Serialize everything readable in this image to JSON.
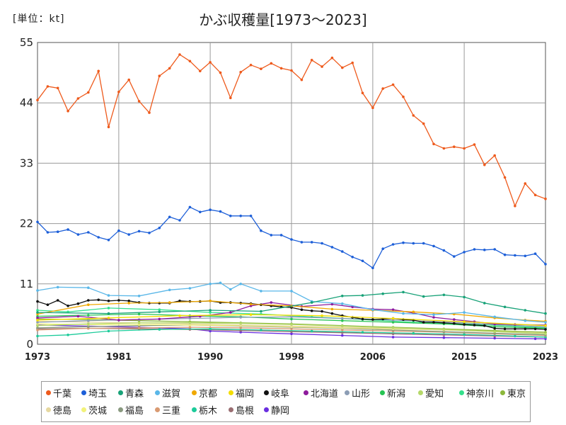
{
  "chart_data": {
    "type": "line",
    "title": "かぶ収穫量[1973〜2023]",
    "unit_label": "[単位：kt]",
    "x_ticks": [
      1973,
      1981,
      1990,
      1998,
      2006,
      2015,
      2023
    ],
    "y_ticks": [
      0,
      11,
      22,
      33,
      44,
      55
    ],
    "xlim": [
      1973,
      2023
    ],
    "ylim": [
      0,
      55
    ],
    "grid": true,
    "legend_position": "bottom",
    "series": [
      {
        "name": "千葉",
        "color": "#ee5a1c",
        "x": [
          1973,
          1974,
          1975,
          1976,
          1977,
          1978,
          1979,
          1980,
          1981,
          1982,
          1983,
          1984,
          1985,
          1986,
          1987,
          1988,
          1989,
          1990,
          1991,
          1992,
          1993,
          1994,
          1995,
          1996,
          1997,
          1998,
          1999,
          2000,
          2001,
          2002,
          2003,
          2004,
          2005,
          2006,
          2007,
          2008,
          2009,
          2010,
          2011,
          2012,
          2013,
          2014,
          2015,
          2016,
          2017,
          2018,
          2019,
          2020,
          2021,
          2022,
          2023
        ],
        "y": [
          44.5,
          47.0,
          46.7,
          42.5,
          44.8,
          45.9,
          49.8,
          39.6,
          46.0,
          48.2,
          44.3,
          42.2,
          48.9,
          50.3,
          52.8,
          51.6,
          49.8,
          51.4,
          49.5,
          44.9,
          49.6,
          50.9,
          50.2,
          51.2,
          50.3,
          49.9,
          48.2,
          51.8,
          50.6,
          52.2,
          50.4,
          51.3,
          45.8,
          43.1,
          46.6,
          47.3,
          45.1,
          41.7,
          40.2,
          36.5,
          35.7,
          36.0,
          35.7,
          36.4,
          32.7,
          34.4,
          30.4,
          25.2,
          29.3,
          27.2,
          26.5
        ]
      },
      {
        "name": "埼玉",
        "color": "#1d5fd8",
        "x": [
          1973,
          1974,
          1975,
          1976,
          1977,
          1978,
          1979,
          1980,
          1981,
          1982,
          1983,
          1984,
          1985,
          1986,
          1987,
          1988,
          1989,
          1990,
          1991,
          1992,
          1993,
          1994,
          1995,
          1996,
          1997,
          1998,
          1999,
          2000,
          2001,
          2002,
          2003,
          2004,
          2005,
          2006,
          2007,
          2008,
          2009,
          2010,
          2011,
          2012,
          2013,
          2014,
          2015,
          2016,
          2017,
          2018,
          2019,
          2020,
          2021,
          2022,
          2023
        ],
        "y": [
          22.3,
          20.4,
          20.5,
          20.9,
          20.0,
          20.4,
          19.5,
          19.0,
          20.7,
          20.0,
          20.6,
          20.3,
          21.2,
          23.2,
          22.6,
          25.0,
          24.1,
          24.5,
          24.2,
          23.4,
          23.4,
          23.4,
          20.7,
          19.9,
          19.9,
          19.1,
          18.6,
          18.6,
          18.4,
          17.7,
          16.9,
          15.9,
          15.2,
          13.9,
          17.4,
          18.2,
          18.5,
          18.4,
          18.4,
          17.9,
          17.1,
          16.0,
          16.8,
          17.3,
          17.2,
          17.3,
          16.3,
          16.2,
          16.1,
          16.5,
          14.6
        ]
      },
      {
        "name": "青森",
        "color": "#18a278",
        "x": [
          1973,
          1980,
          1985,
          1990,
          1995,
          2000,
          2003,
          2005,
          2007,
          2009,
          2011,
          2013,
          2015,
          2017,
          2019,
          2021,
          2023
        ],
        "y": [
          5.8,
          5.6,
          5.9,
          6.2,
          6.0,
          7.6,
          8.8,
          8.9,
          9.2,
          9.5,
          8.7,
          9.0,
          8.6,
          7.5,
          6.8,
          6.2,
          5.6
        ]
      },
      {
        "name": "滋賀",
        "color": "#5ab7e8",
        "x": [
          1973,
          1975,
          1978,
          1980,
          1983,
          1986,
          1988,
          1990,
          1991,
          1992,
          1993,
          1995,
          1998,
          2000,
          2003,
          2006,
          2009,
          2012,
          2015,
          2018,
          2021,
          2023
        ],
        "y": [
          9.8,
          10.4,
          10.3,
          8.9,
          8.8,
          9.9,
          10.2,
          11.0,
          11.2,
          10.0,
          11.0,
          9.7,
          9.7,
          7.8,
          7.4,
          6.3,
          5.6,
          5.4,
          5.8,
          5.0,
          4.3,
          4.0
        ]
      },
      {
        "name": "京都",
        "color": "#f0a800",
        "x": [
          1973,
          1978,
          1982,
          1986,
          1990,
          1994,
          1998,
          2002,
          2006,
          2010,
          2014,
          2018,
          2021,
          2023
        ],
        "y": [
          5.5,
          7.2,
          7.5,
          7.6,
          7.9,
          7.3,
          7.0,
          6.4,
          6.2,
          5.9,
          5.5,
          4.8,
          4.4,
          4.2
        ]
      },
      {
        "name": "福岡",
        "color": "#f3dd00",
        "x": [
          1973,
          1980,
          1987,
          1994,
          2001,
          2008,
          2015,
          2023
        ],
        "y": [
          4.4,
          4.8,
          5.2,
          5.4,
          5.2,
          4.7,
          4.1,
          3.4
        ]
      },
      {
        "name": "岐阜",
        "color": "#111111",
        "x": [
          1973,
          1974,
          1975,
          1976,
          1977,
          1978,
          1979,
          1980,
          1981,
          1982,
          1983,
          1984,
          1985,
          1986,
          1987,
          1988,
          1989,
          1990,
          1991,
          1992,
          1993,
          1994,
          1995,
          1996,
          1997,
          1998,
          1999,
          2000,
          2001,
          2002,
          2003,
          2004,
          2005,
          2006,
          2007,
          2008,
          2009,
          2010,
          2011,
          2012,
          2013,
          2014,
          2015,
          2016,
          2017,
          2018,
          2019,
          2020,
          2021,
          2022,
          2023
        ],
        "y": [
          7.8,
          7.2,
          8.0,
          7.0,
          7.4,
          8.0,
          8.1,
          7.9,
          8.0,
          7.9,
          7.6,
          7.5,
          7.5,
          7.5,
          7.9,
          7.8,
          7.8,
          7.9,
          7.6,
          7.6,
          7.5,
          7.4,
          7.2,
          7.0,
          6.8,
          6.7,
          6.3,
          6.1,
          6.0,
          5.6,
          5.2,
          4.9,
          4.6,
          4.5,
          4.6,
          4.7,
          4.5,
          4.4,
          4.0,
          4.0,
          3.9,
          3.8,
          3.6,
          3.5,
          3.4,
          2.9,
          2.8,
          2.8,
          2.8,
          2.8,
          2.7
        ]
      },
      {
        "name": "北海道",
        "color": "#8e1b9c",
        "x": [
          1973,
          1977,
          1981,
          1985,
          1989,
          1992,
          1994,
          1996,
          1999,
          2002,
          2004,
          2006,
          2008,
          2010,
          2012,
          2014,
          2016,
          2018,
          2020,
          2023
        ],
        "y": [
          4.8,
          5.1,
          4.4,
          4.6,
          5.1,
          5.8,
          7.0,
          7.6,
          6.9,
          7.3,
          6.8,
          6.4,
          6.3,
          5.7,
          4.9,
          4.5,
          4.1,
          3.7,
          3.6,
          3.5
        ]
      },
      {
        "name": "山形",
        "color": "#8c9db5",
        "x": [
          1973,
          1978,
          1983,
          1988,
          1993,
          1998,
          2003,
          2008,
          2013,
          2018,
          2023
        ],
        "y": [
          4.0,
          4.3,
          4.5,
          4.7,
          4.9,
          5.0,
          4.7,
          4.4,
          4.1,
          3.6,
          3.2
        ]
      },
      {
        "name": "新潟",
        "color": "#27c453",
        "x": [
          1973,
          1978,
          1983,
          1988,
          1993,
          1998,
          2003,
          2008,
          2013,
          2018,
          2023
        ],
        "y": [
          5.1,
          5.3,
          5.5,
          5.2,
          5.0,
          4.6,
          4.3,
          4.0,
          3.7,
          3.2,
          2.9
        ]
      },
      {
        "name": "愛知",
        "color": "#b5d86a",
        "x": [
          1973,
          1978,
          1983,
          1988,
          1993,
          1998,
          2003,
          2008,
          2013,
          2018,
          2023
        ],
        "y": [
          3.4,
          3.7,
          3.9,
          3.9,
          3.8,
          3.6,
          3.3,
          3.0,
          2.7,
          2.3,
          1.9
        ]
      },
      {
        "name": "神奈川",
        "color": "#35e08c",
        "x": [
          1973,
          1976,
          1980,
          1985,
          1990,
          1995,
          2000,
          2005,
          2010,
          2015,
          2020,
          2023
        ],
        "y": [
          6.2,
          5.9,
          6.6,
          6.3,
          5.8,
          5.5,
          5.0,
          4.5,
          4.0,
          3.7,
          3.3,
          3.0
        ]
      },
      {
        "name": "東京",
        "color": "#8cb83c",
        "x": [
          1973,
          1978,
          1983,
          1988,
          1993,
          1998,
          2003,
          2008,
          2013,
          2018,
          2023
        ],
        "y": [
          4.6,
          4.5,
          4.3,
          4.1,
          3.9,
          3.7,
          3.4,
          3.1,
          2.8,
          2.5,
          2.2
        ]
      },
      {
        "name": "徳島",
        "color": "#e6d8a0",
        "x": [
          1973,
          1978,
          1983,
          1988,
          1993,
          1998,
          2003,
          2008,
          2013,
          2018,
          2023
        ],
        "y": [
          4.2,
          4.0,
          3.9,
          3.7,
          3.5,
          3.3,
          3.1,
          2.9,
          2.6,
          2.3,
          2.0
        ]
      },
      {
        "name": "茨城",
        "color": "#f2f27a",
        "x": [
          1973,
          1978,
          1983,
          1988,
          1993,
          1998,
          2003,
          2008,
          2013,
          2018,
          2023
        ],
        "y": [
          3.7,
          3.6,
          3.6,
          3.5,
          3.4,
          3.2,
          3.0,
          2.8,
          2.6,
          2.4,
          2.2
        ]
      },
      {
        "name": "福島",
        "color": "#8a9a80",
        "x": [
          1973,
          1978,
          1983,
          1988,
          1993,
          1998,
          2003,
          2008,
          2013,
          2018,
          2023
        ],
        "y": [
          3.0,
          3.2,
          3.4,
          3.5,
          3.3,
          3.1,
          2.9,
          2.6,
          2.3,
          2.0,
          1.7
        ]
      },
      {
        "name": "三重",
        "color": "#d99a72",
        "x": [
          1973,
          1978,
          1983,
          1988,
          1993,
          1998,
          2003,
          2008,
          2013,
          2018,
          2023
        ],
        "y": [
          2.6,
          2.9,
          3.0,
          3.1,
          3.0,
          2.8,
          2.6,
          2.4,
          2.2,
          1.9,
          1.6
        ]
      },
      {
        "name": "栃木",
        "color": "#1ccb9a",
        "x": [
          1973,
          1976,
          1980,
          1985,
          1990,
          1995,
          2000,
          2005,
          2010,
          2015,
          2020,
          2023
        ],
        "y": [
          1.5,
          1.7,
          2.4,
          2.7,
          2.8,
          2.6,
          2.4,
          2.2,
          2.0,
          1.8,
          1.5,
          1.3
        ]
      },
      {
        "name": "島根",
        "color": "#9a6e72",
        "x": [
          1973,
          1978,
          1983,
          1988,
          1993,
          1998,
          2003,
          2008,
          2013,
          2018,
          2023
        ],
        "y": [
          2.8,
          2.9,
          2.8,
          2.7,
          2.5,
          2.3,
          2.1,
          1.9,
          1.7,
          1.5,
          1.3
        ]
      },
      {
        "name": "静岡",
        "color": "#6a2ee0",
        "x": [
          1973,
          1978,
          1983,
          1988,
          1990,
          1993,
          1998,
          2003,
          2008,
          2013,
          2018,
          2022,
          2023
        ],
        "y": [
          3.5,
          3.3,
          3.1,
          2.8,
          2.4,
          2.2,
          1.9,
          1.6,
          1.3,
          1.2,
          1.1,
          1.0,
          1.0
        ]
      }
    ]
  }
}
